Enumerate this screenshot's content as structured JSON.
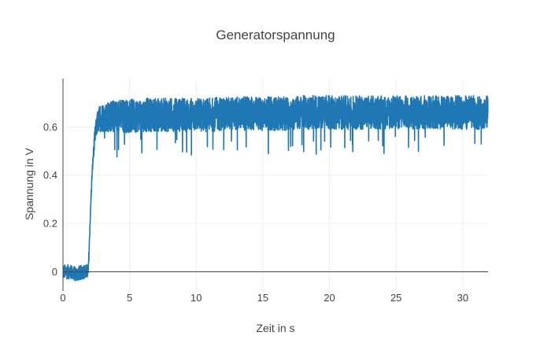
{
  "chart_data": {
    "type": "line",
    "title": "Generatorspannung",
    "xlabel": "Zeit in s",
    "ylabel": "Spannung in V",
    "xlim": [
      0,
      31.9
    ],
    "ylim": [
      -0.08,
      0.8
    ],
    "x_ticks": [
      0,
      5,
      10,
      15,
      20,
      25,
      30
    ],
    "x_tick_labels": [
      "0",
      "5",
      "10",
      "15",
      "20",
      "25",
      "30"
    ],
    "y_ticks": [
      0,
      0.2,
      0.4,
      0.6
    ],
    "y_tick_labels": [
      "0",
      "0.2",
      "0.4",
      "0.6"
    ],
    "grid": true,
    "legend": "none",
    "colors": {
      "line": "#1f77b4",
      "grid": "#eeeeee",
      "zeroline": "#444444",
      "axis": "#444444"
    },
    "series": [
      {
        "x": [
          0,
          0.5,
          1.0,
          1.5,
          1.9,
          2.0,
          2.1,
          2.2,
          2.3,
          2.4,
          2.5,
          2.6,
          2.7,
          2.8,
          3.0,
          4,
          5,
          6,
          7,
          8,
          9,
          10,
          11,
          12,
          13,
          14,
          15,
          16,
          17,
          18,
          19,
          20,
          21,
          22,
          23,
          24,
          25,
          26,
          27,
          28,
          29,
          30,
          31,
          31.9
        ],
        "values": [
          0.0,
          0.0,
          -0.01,
          0.0,
          0.0,
          0.15,
          0.3,
          0.42,
          0.5,
          0.56,
          0.6,
          0.62,
          0.63,
          0.64,
          0.64,
          0.645,
          0.645,
          0.65,
          0.65,
          0.65,
          0.65,
          0.65,
          0.65,
          0.655,
          0.655,
          0.655,
          0.655,
          0.655,
          0.655,
          0.66,
          0.66,
          0.66,
          0.66,
          0.66,
          0.66,
          0.66,
          0.66,
          0.66,
          0.66,
          0.66,
          0.66,
          0.66,
          0.66,
          0.66
        ],
        "noise_amplitude_v": [
          0.03,
          0.03,
          0.03,
          0.03,
          0.03,
          0.02,
          0.02,
          0.02,
          0.03,
          0.04,
          0.04,
          0.05,
          0.05,
          0.06,
          0.06,
          0.07,
          0.07,
          0.07,
          0.07,
          0.07,
          0.07,
          0.07,
          0.07,
          0.07,
          0.07,
          0.07,
          0.07,
          0.07,
          0.07,
          0.07,
          0.07,
          0.07,
          0.07,
          0.07,
          0.07,
          0.07,
          0.07,
          0.07,
          0.07,
          0.07,
          0.07,
          0.07,
          0.07,
          0.07
        ]
      }
    ]
  }
}
